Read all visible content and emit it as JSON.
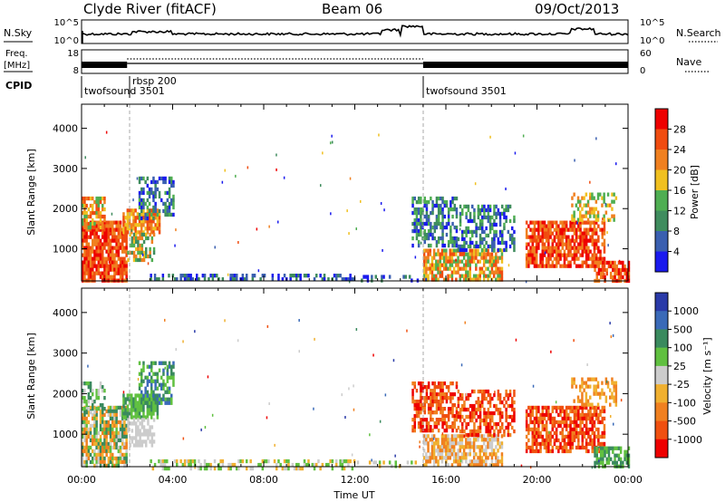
{
  "header": {
    "station": "Clyde River (fitACF)",
    "beam": "Beam 06",
    "date": "09/Oct/2013"
  },
  "top_panels": {
    "nsky_label": "N.Sky",
    "nsearch_label": "N.Search",
    "nsky_ticks": [
      "10^5",
      "10^0"
    ],
    "nsearch_ticks": [
      "10^5",
      "10^0"
    ],
    "freq_label": "Freq.",
    "freq_unit": "[MHz]",
    "freq_ticks": [
      "18",
      "8"
    ],
    "nave_label": "Nave",
    "nave_ticks": [
      "60",
      "0"
    ],
    "cpid_label": "CPID",
    "cpid_segments": [
      {
        "name": "twofsound 3501",
        "start_h": 0,
        "end_h": 2
      },
      {
        "name": "rbsp 200",
        "start_h": 2,
        "end_h": 15
      },
      {
        "name": "twofsound 3501",
        "start_h": 15,
        "end_h": 24
      }
    ]
  },
  "colors": {
    "power": [
      "#1a1aee",
      "#3a5fb0",
      "#3f8c5e",
      "#4fae52",
      "#f0c020",
      "#f08020",
      "#f04c10",
      "#ee0000"
    ],
    "velocity": [
      "#ee0000",
      "#f05010",
      "#f08020",
      "#f0b030",
      "#cccccc",
      "#60c040",
      "#3a8a5e",
      "#3a6ab8",
      "#2a3aa8"
    ]
  },
  "chart_data": [
    {
      "type": "heatmap",
      "name": "power",
      "ylabel": "Slant Range [km]",
      "xlim": [
        0,
        24
      ],
      "ylim": [
        200,
        4600
      ],
      "yticks": [
        1000,
        2000,
        3000,
        4000
      ],
      "colorbar": {
        "label": "Power [dB]",
        "ticks": [
          "28",
          "24",
          "20",
          "16",
          "12",
          "8",
          "4"
        ]
      },
      "regions": [
        {
          "x": [
            0.0,
            2.0
          ],
          "y": [
            200,
            1700
          ],
          "levels": [
            5,
            7
          ],
          "fill": 0.85
        },
        {
          "x": [
            0.0,
            1.0
          ],
          "y": [
            1500,
            2300
          ],
          "levels": [
            3,
            6
          ],
          "fill": 0.6
        },
        {
          "x": [
            1.8,
            3.4
          ],
          "y": [
            1400,
            2000
          ],
          "levels": [
            4,
            6
          ],
          "fill": 0.8
        },
        {
          "x": [
            2.0,
            3.2
          ],
          "y": [
            700,
            1400
          ],
          "levels": [
            2,
            5
          ],
          "fill": 0.55
        },
        {
          "x": [
            2.5,
            4.0
          ],
          "y": [
            1800,
            2800
          ],
          "levels": [
            0,
            3
          ],
          "fill": 0.5
        },
        {
          "x": [
            3.0,
            12.0
          ],
          "y": [
            200,
            380
          ],
          "levels": [
            0,
            2
          ],
          "fill": 0.45
        },
        {
          "x": [
            12.0,
            14.8
          ],
          "y": [
            200,
            350
          ],
          "levels": [
            0,
            2
          ],
          "fill": 0.3
        },
        {
          "x": [
            14.5,
            16.5
          ],
          "y": [
            1100,
            2300
          ],
          "levels": [
            0,
            3
          ],
          "fill": 0.6
        },
        {
          "x": [
            15.0,
            18.5
          ],
          "y": [
            200,
            1000
          ],
          "levels": [
            3,
            6
          ],
          "fill": 0.7
        },
        {
          "x": [
            16.5,
            19.0
          ],
          "y": [
            1000,
            2100
          ],
          "levels": [
            0,
            3
          ],
          "fill": 0.5
        },
        {
          "x": [
            19.5,
            23.0
          ],
          "y": [
            600,
            1700
          ],
          "levels": [
            5,
            7
          ],
          "fill": 0.75
        },
        {
          "x": [
            21.5,
            23.5
          ],
          "y": [
            1700,
            2400
          ],
          "levels": [
            3,
            5
          ],
          "fill": 0.45
        },
        {
          "x": [
            22.5,
            24.0
          ],
          "y": [
            200,
            700
          ],
          "levels": [
            5,
            7
          ],
          "fill": 0.7
        }
      ]
    },
    {
      "type": "heatmap",
      "name": "velocity",
      "xlabel": "Time UT",
      "ylabel": "Slant Range [km]",
      "xlim": [
        0,
        24
      ],
      "ylim": [
        200,
        4600
      ],
      "yticks": [
        1000,
        2000,
        3000,
        4000
      ],
      "xticks": [
        "00:00",
        "04:00",
        "08:00",
        "12:00",
        "16:00",
        "20:00",
        "00:00"
      ],
      "colorbar": {
        "label": "Velocity [m s⁻¹]",
        "ticks": [
          "1000",
          "500",
          "100",
          "25",
          "-25",
          "-100",
          "-500",
          "-1000"
        ]
      },
      "regions": [
        {
          "x": [
            0.0,
            2.0
          ],
          "y": [
            200,
            1700
          ],
          "levels": [
            2,
            6
          ],
          "fill": 0.8
        },
        {
          "x": [
            0.0,
            1.0
          ],
          "y": [
            1500,
            2300
          ],
          "levels": [
            4,
            6
          ],
          "fill": 0.55
        },
        {
          "x": [
            1.8,
            3.4
          ],
          "y": [
            1400,
            2000
          ],
          "levels": [
            5,
            6
          ],
          "fill": 0.8
        },
        {
          "x": [
            2.0,
            3.2
          ],
          "y": [
            700,
            1400
          ],
          "levels": [
            4,
            4
          ],
          "fill": 0.55
        },
        {
          "x": [
            2.5,
            4.0
          ],
          "y": [
            1800,
            2800
          ],
          "levels": [
            5,
            7
          ],
          "fill": 0.5
        },
        {
          "x": [
            3.0,
            12.0
          ],
          "y": [
            200,
            380
          ],
          "levels": [
            3,
            5
          ],
          "fill": 0.45
        },
        {
          "x": [
            12.0,
            14.8
          ],
          "y": [
            200,
            350
          ],
          "levels": [
            3,
            5
          ],
          "fill": 0.3
        },
        {
          "x": [
            14.5,
            16.5
          ],
          "y": [
            1100,
            2300
          ],
          "levels": [
            0,
            2
          ],
          "fill": 0.65
        },
        {
          "x": [
            15.0,
            18.5
          ],
          "y": [
            200,
            1000
          ],
          "levels": [
            2,
            4
          ],
          "fill": 0.7
        },
        {
          "x": [
            16.5,
            19.0
          ],
          "y": [
            1000,
            2100
          ],
          "levels": [
            0,
            2
          ],
          "fill": 0.6
        },
        {
          "x": [
            19.5,
            23.0
          ],
          "y": [
            600,
            1700
          ],
          "levels": [
            0,
            2
          ],
          "fill": 0.7
        },
        {
          "x": [
            21.5,
            23.5
          ],
          "y": [
            1700,
            2400
          ],
          "levels": [
            2,
            3
          ],
          "fill": 0.45
        },
        {
          "x": [
            22.5,
            24.0
          ],
          "y": [
            200,
            700
          ],
          "levels": [
            5,
            6
          ],
          "fill": 0.7
        }
      ]
    }
  ]
}
